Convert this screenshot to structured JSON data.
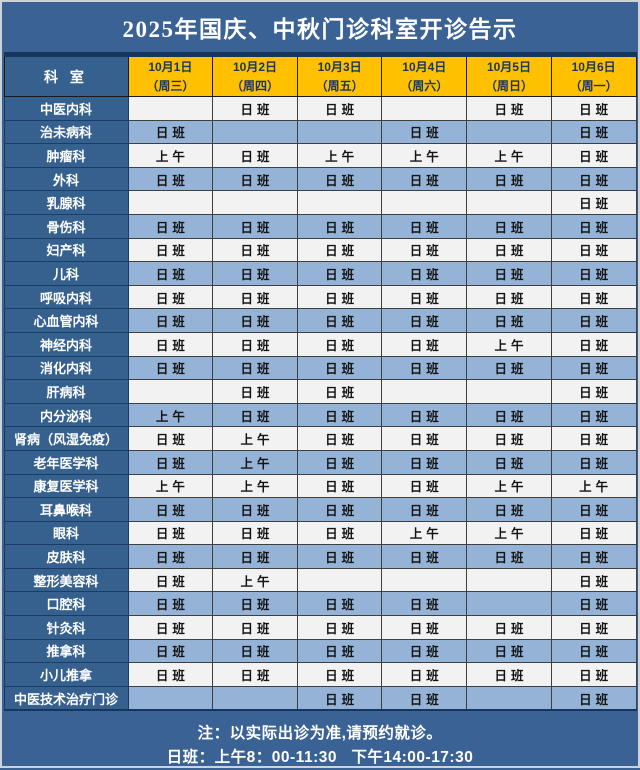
{
  "title": "2025年国庆、中秋门诊科室开诊告示",
  "header": {
    "dept_label": "科  室",
    "dates": [
      {
        "date": "10月1日",
        "weekday": "（周三）"
      },
      {
        "date": "10月2日",
        "weekday": "（周四）"
      },
      {
        "date": "10月3日",
        "weekday": "（周五）"
      },
      {
        "date": "10月4日",
        "weekday": "（周六）"
      },
      {
        "date": "10月5日",
        "weekday": "（周日）"
      },
      {
        "date": "10月6日",
        "weekday": "（周一）"
      }
    ]
  },
  "legend": {
    "day_shift": "日班",
    "morning": "上午"
  },
  "rows": [
    {
      "dept": "中医内科",
      "cells": [
        "",
        "日班",
        "日班",
        "",
        "日班",
        "日班"
      ]
    },
    {
      "dept": "治未病科",
      "cells": [
        "日班",
        "",
        "",
        "日班",
        "",
        "日班"
      ]
    },
    {
      "dept": "肿瘤科",
      "cells": [
        "上午",
        "日班",
        "上午",
        "上午",
        "上午",
        "日班"
      ]
    },
    {
      "dept": "外科",
      "cells": [
        "日班",
        "日班",
        "日班",
        "日班",
        "日班",
        "日班"
      ]
    },
    {
      "dept": "乳腺科",
      "cells": [
        "",
        "",
        "",
        "",
        "",
        "日班"
      ]
    },
    {
      "dept": "骨伤科",
      "cells": [
        "日班",
        "日班",
        "日班",
        "日班",
        "日班",
        "日班"
      ]
    },
    {
      "dept": "妇产科",
      "cells": [
        "日班",
        "日班",
        "日班",
        "日班",
        "日班",
        "日班"
      ]
    },
    {
      "dept": "儿科",
      "cells": [
        "日班",
        "日班",
        "日班",
        "日班",
        "日班",
        "日班"
      ]
    },
    {
      "dept": "呼吸内科",
      "cells": [
        "日班",
        "日班",
        "日班",
        "日班",
        "日班",
        "日班"
      ]
    },
    {
      "dept": "心血管内科",
      "cells": [
        "日班",
        "日班",
        "日班",
        "日班",
        "日班",
        "日班"
      ]
    },
    {
      "dept": "神经内科",
      "cells": [
        "日班",
        "日班",
        "日班",
        "日班",
        "上午",
        "日班"
      ]
    },
    {
      "dept": "消化内科",
      "cells": [
        "日班",
        "日班",
        "日班",
        "日班",
        "日班",
        "日班"
      ]
    },
    {
      "dept": "肝病科",
      "cells": [
        "",
        "日班",
        "日班",
        "",
        "",
        "日班"
      ]
    },
    {
      "dept": "内分泌科",
      "cells": [
        "上午",
        "日班",
        "日班",
        "日班",
        "日班",
        "日班"
      ]
    },
    {
      "dept": "肾病（风湿免疫）",
      "cells": [
        "日班",
        "上午",
        "日班",
        "日班",
        "日班",
        "日班"
      ]
    },
    {
      "dept": "老年医学科",
      "cells": [
        "日班",
        "上午",
        "日班",
        "日班",
        "日班",
        "日班"
      ]
    },
    {
      "dept": "康复医学科",
      "cells": [
        "上午",
        "上午",
        "日班",
        "日班",
        "上午",
        "上午"
      ]
    },
    {
      "dept": "耳鼻喉科",
      "cells": [
        "日班",
        "日班",
        "日班",
        "日班",
        "日班",
        "日班"
      ]
    },
    {
      "dept": "眼科",
      "cells": [
        "日班",
        "日班",
        "日班",
        "上午",
        "上午",
        "日班"
      ]
    },
    {
      "dept": "皮肤科",
      "cells": [
        "日班",
        "日班",
        "日班",
        "日班",
        "日班",
        "日班"
      ]
    },
    {
      "dept": "整形美容科",
      "cells": [
        "日班",
        "上午",
        "",
        "",
        "",
        "日班"
      ]
    },
    {
      "dept": "口腔科",
      "cells": [
        "日班",
        "日班",
        "日班",
        "日班",
        "",
        "日班"
      ]
    },
    {
      "dept": "针灸科",
      "cells": [
        "日班",
        "日班",
        "日班",
        "日班",
        "日班",
        "日班"
      ]
    },
    {
      "dept": "推拿科",
      "cells": [
        "日班",
        "日班",
        "日班",
        "日班",
        "日班",
        "日班"
      ]
    },
    {
      "dept": "小儿推拿",
      "cells": [
        "日班",
        "日班",
        "日班",
        "日班",
        "日班",
        "日班"
      ]
    },
    {
      "dept": "中医技术治疗门诊",
      "cells": [
        "",
        "",
        "日班",
        "日班",
        "",
        "日班"
      ]
    }
  ],
  "notes": {
    "line1": "注：以实际出诊为准,请预约就诊。",
    "line2": "日班：上午8：00-11:30   下午14:00-17:30"
  },
  "colors": {
    "page_background": "#3A6295",
    "header_orange": "#FFC000",
    "dept_cell_blue": "#36618F",
    "row_light": "#F2F2F2",
    "row_blue": "#95B3D7",
    "navy_border": "#17365D",
    "title_text": "#FFFFFF",
    "header_text": "#17365D"
  }
}
